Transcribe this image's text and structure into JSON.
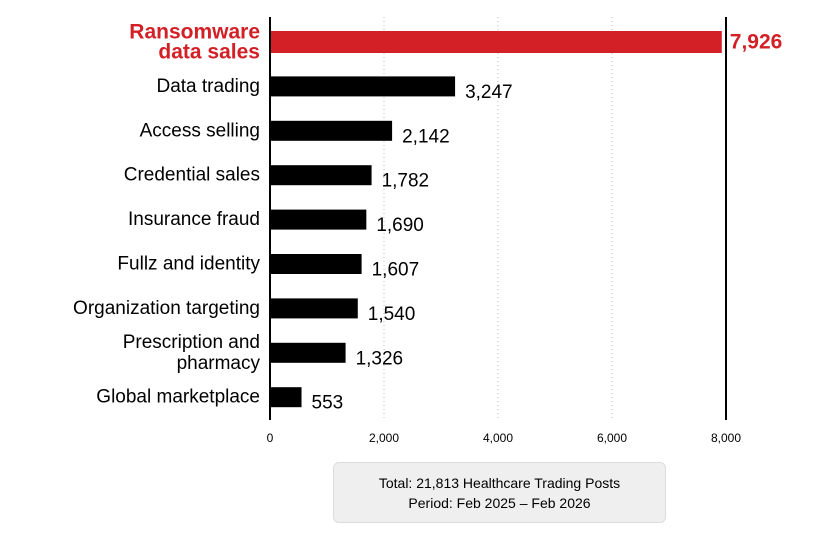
{
  "chart_data": {
    "type": "bar",
    "orientation": "horizontal",
    "categories": [
      "Ransomware data sales",
      "Data trading",
      "Access selling",
      "Credential sales",
      "Insurance fraud",
      "Fullz and identity",
      "Organization targeting",
      "Prescription and pharmacy",
      "Global marketplace"
    ],
    "category_lines": [
      [
        "Ransomware",
        "data sales"
      ],
      [
        "Data trading"
      ],
      [
        "Access selling"
      ],
      [
        "Credential sales"
      ],
      [
        "Insurance fraud"
      ],
      [
        "Fullz and identity"
      ],
      [
        "Organization targeting"
      ],
      [
        "Prescription and",
        "pharmacy"
      ],
      [
        "Global marketplace"
      ]
    ],
    "values": [
      7926,
      3247,
      2142,
      1782,
      1690,
      1607,
      1540,
      1326,
      553
    ],
    "value_labels": [
      "7,926",
      "3,247",
      "2,142",
      "1,782",
      "1,690",
      "1,607",
      "1,540",
      "1,326",
      "553"
    ],
    "highlight_index": 0,
    "title": "",
    "xlabel": "",
    "ylabel": "",
    "xlim": [
      0,
      8000
    ],
    "xticks": [
      0,
      2000,
      4000,
      6000,
      8000
    ],
    "xtick_labels": [
      "0",
      "2,000",
      "4,000",
      "6,000",
      "8,000"
    ],
    "grid": "vertical dotted",
    "colors": {
      "bar": "#000000",
      "highlight": "#d32027",
      "grid": "#bdbdbd"
    }
  },
  "footer": {
    "total": "Total: 21,813 Healthcare Trading Posts",
    "period": "Period: Feb 2025 – Feb 2026"
  }
}
